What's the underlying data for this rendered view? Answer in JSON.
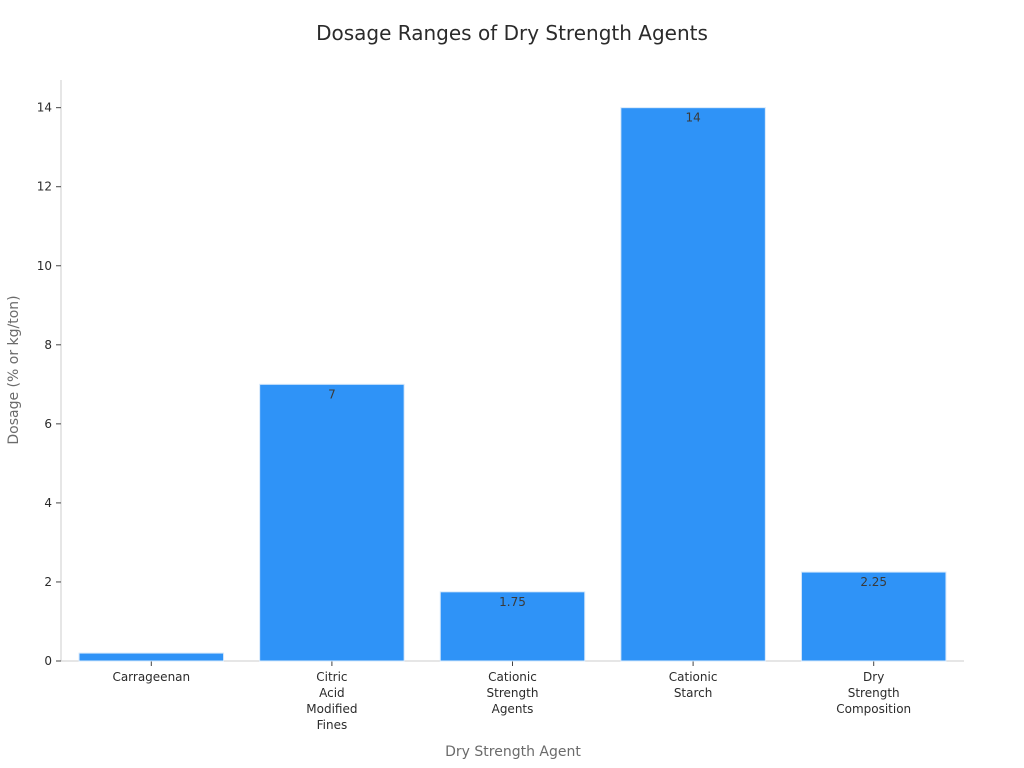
{
  "chart_data": {
    "type": "bar",
    "title": "Dosage Ranges of Dry Strength Agents",
    "xlabel": "Dry Strength Agent",
    "ylabel": "Dosage (% or kg/ton)",
    "categories": [
      [
        "Carrageenan"
      ],
      [
        "Citric",
        "Acid",
        "Modified",
        "Fines"
      ],
      [
        "Cationic",
        "Strength",
        "Agents"
      ],
      [
        "Cationic",
        "Starch"
      ],
      [
        "Dry",
        "Strength",
        "Composition"
      ]
    ],
    "values": [
      0.2,
      7,
      1.75,
      14,
      2.25
    ],
    "data_labels": [
      "",
      "7",
      "1.75",
      "14",
      "2.25"
    ],
    "ylim": [
      0,
      14.7
    ],
    "yticks": [
      0,
      2,
      4,
      6,
      8,
      10,
      12,
      14
    ],
    "grid": false,
    "legend": "none",
    "bar_color": "#2f93f7"
  }
}
